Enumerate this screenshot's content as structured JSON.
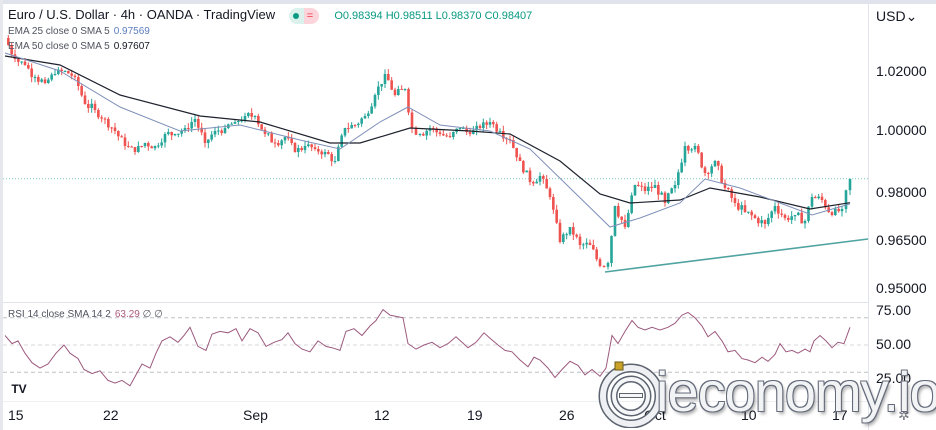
{
  "header": {
    "title": "Euro / U.S. Dollar · 4h · OANDA · TradingView",
    "status_icons": [
      "market-open-dot-icon",
      "equals-icon"
    ],
    "ohlc": "O0.98394 H0.98511 L0.98370 C0.98407"
  },
  "indicators": [
    {
      "label": "EMA 25 close 0 SMA 5",
      "value": "0.97569",
      "color": "#5b7dbf"
    },
    {
      "label": "EMA 50 close 0 SMA 5",
      "value": "0.97607",
      "color": "#131722"
    }
  ],
  "rsi": {
    "label": "RSI 14 close SMA 14 2",
    "value": "63.29",
    "extra": "∅ ∅"
  },
  "price_axis": {
    "currency": "USD",
    "ticks": [
      {
        "label": "1.02000",
        "y": 72
      },
      {
        "label": "1.00000",
        "y": 131
      },
      {
        "label": "0.98000",
        "y": 193
      },
      {
        "label": "0.96500",
        "y": 241
      },
      {
        "label": "0.95000",
        "y": 289
      }
    ]
  },
  "rsi_axis": {
    "ticks": [
      {
        "label": "75.00",
        "y": 311
      },
      {
        "label": "50.00",
        "y": 345
      },
      {
        "label": "25.00",
        "y": 379
      }
    ]
  },
  "time_axis": {
    "ticks": [
      {
        "label": "15",
        "x": 8
      },
      {
        "label": "22",
        "x": 103
      },
      {
        "label": "Sep",
        "x": 243
      },
      {
        "label": "12",
        "x": 374
      },
      {
        "label": "19",
        "x": 467
      },
      {
        "label": "26",
        "x": 559
      },
      {
        "label": "Oct",
        "x": 644
      },
      {
        "label": "10",
        "x": 741
      },
      {
        "label": "17",
        "x": 832
      }
    ]
  },
  "watermark": "ieconomy.io",
  "tv_logo": "TV",
  "colors": {
    "up": "#26a69a",
    "down": "#ef5350",
    "ema25": "#7e8fb8",
    "ema50": "#1e222d",
    "rsi": "#9c5a7e",
    "trendline": "#4fa3a0",
    "last_price": "#26a69a"
  },
  "chart_data": {
    "type": "candlestick",
    "title": "Euro / U.S. Dollar · 4h · OANDA",
    "xlabel": "",
    "ylabel": "USD",
    "ylim": [
      0.946,
      1.033
    ],
    "x_ticks": [
      "15",
      "22",
      "Sep",
      "12",
      "19",
      "26",
      "Oct",
      "10",
      "17"
    ],
    "y_ticks": [
      1.02,
      1.0,
      0.98,
      0.965,
      0.95
    ],
    "last_close": 0.98407,
    "close_path": [
      {
        "x": 5,
        "v": 1.031
      },
      {
        "x": 15,
        "v": 1.024
      },
      {
        "x": 25,
        "v": 1.022
      },
      {
        "x": 35,
        "v": 1.018
      },
      {
        "x": 45,
        "v": 1.016
      },
      {
        "x": 55,
        "v": 1.019
      },
      {
        "x": 65,
        "v": 1.02
      },
      {
        "x": 75,
        "v": 1.018
      },
      {
        "x": 85,
        "v": 1.009
      },
      {
        "x": 95,
        "v": 1.007
      },
      {
        "x": 105,
        "v": 1.004
      },
      {
        "x": 115,
        "v": 1.0
      },
      {
        "x": 125,
        "v": 0.995
      },
      {
        "x": 135,
        "v": 0.993
      },
      {
        "x": 145,
        "v": 0.996
      },
      {
        "x": 155,
        "v": 0.995
      },
      {
        "x": 165,
        "v": 0.999
      },
      {
        "x": 175,
        "v": 0.999
      },
      {
        "x": 185,
        "v": 1.001
      },
      {
        "x": 195,
        "v": 1.004
      },
      {
        "x": 205,
        "v": 0.996
      },
      {
        "x": 215,
        "v": 1.0
      },
      {
        "x": 225,
        "v": 1.001
      },
      {
        "x": 235,
        "v": 1.003
      },
      {
        "x": 245,
        "v": 1.005
      },
      {
        "x": 255,
        "v": 1.005
      },
      {
        "x": 265,
        "v": 0.999
      },
      {
        "x": 275,
        "v": 0.996
      },
      {
        "x": 285,
        "v": 0.998
      },
      {
        "x": 295,
        "v": 0.993
      },
      {
        "x": 305,
        "v": 0.995
      },
      {
        "x": 315,
        "v": 0.994
      },
      {
        "x": 325,
        "v": 0.993
      },
      {
        "x": 335,
        "v": 0.99
      },
      {
        "x": 345,
        "v": 1.001
      },
      {
        "x": 355,
        "v": 1.002
      },
      {
        "x": 365,
        "v": 1.005
      },
      {
        "x": 375,
        "v": 1.012
      },
      {
        "x": 385,
        "v": 1.019
      },
      {
        "x": 395,
        "v": 1.012
      },
      {
        "x": 405,
        "v": 1.014
      },
      {
        "x": 412,
        "v": 1.001
      },
      {
        "x": 420,
        "v": 0.999
      },
      {
        "x": 430,
        "v": 1.001
      },
      {
        "x": 440,
        "v": 0.999
      },
      {
        "x": 450,
        "v": 0.998
      },
      {
        "x": 460,
        "v": 1.001
      },
      {
        "x": 470,
        "v": 0.999
      },
      {
        "x": 480,
        "v": 1.001
      },
      {
        "x": 490,
        "v": 1.003
      },
      {
        "x": 500,
        "v": 1.0
      },
      {
        "x": 510,
        "v": 0.997
      },
      {
        "x": 520,
        "v": 0.99
      },
      {
        "x": 530,
        "v": 0.983
      },
      {
        "x": 540,
        "v": 0.985
      },
      {
        "x": 550,
        "v": 0.978
      },
      {
        "x": 560,
        "v": 0.963
      },
      {
        "x": 570,
        "v": 0.968
      },
      {
        "x": 580,
        "v": 0.962
      },
      {
        "x": 590,
        "v": 0.962
      },
      {
        "x": 600,
        "v": 0.955
      },
      {
        "x": 608,
        "v": 0.956
      },
      {
        "x": 615,
        "v": 0.975
      },
      {
        "x": 625,
        "v": 0.968
      },
      {
        "x": 635,
        "v": 0.982
      },
      {
        "x": 645,
        "v": 0.98
      },
      {
        "x": 655,
        "v": 0.982
      },
      {
        "x": 665,
        "v": 0.976
      },
      {
        "x": 675,
        "v": 0.982
      },
      {
        "x": 685,
        "v": 0.995
      },
      {
        "x": 695,
        "v": 0.995
      },
      {
        "x": 705,
        "v": 0.986
      },
      {
        "x": 715,
        "v": 0.99
      },
      {
        "x": 725,
        "v": 0.981
      },
      {
        "x": 735,
        "v": 0.976
      },
      {
        "x": 745,
        "v": 0.973
      },
      {
        "x": 755,
        "v": 0.971
      },
      {
        "x": 765,
        "v": 0.969
      },
      {
        "x": 775,
        "v": 0.975
      },
      {
        "x": 785,
        "v": 0.971
      },
      {
        "x": 795,
        "v": 0.972
      },
      {
        "x": 805,
        "v": 0.97
      },
      {
        "x": 812,
        "v": 0.978
      },
      {
        "x": 822,
        "v": 0.977
      },
      {
        "x": 832,
        "v": 0.972
      },
      {
        "x": 842,
        "v": 0.974
      },
      {
        "x": 850,
        "v": 0.984
      }
    ],
    "ema25": [
      {
        "x": 5,
        "v": 1.026
      },
      {
        "x": 60,
        "v": 1.02
      },
      {
        "x": 120,
        "v": 1.008
      },
      {
        "x": 180,
        "v": 1.0
      },
      {
        "x": 240,
        "v": 1.002
      },
      {
        "x": 300,
        "v": 0.997
      },
      {
        "x": 340,
        "v": 0.994
      },
      {
        "x": 380,
        "v": 1.003
      },
      {
        "x": 408,
        "v": 1.008
      },
      {
        "x": 440,
        "v": 1.002
      },
      {
        "x": 490,
        "v": 1.0
      },
      {
        "x": 530,
        "v": 0.994
      },
      {
        "x": 570,
        "v": 0.981
      },
      {
        "x": 610,
        "v": 0.968
      },
      {
        "x": 640,
        "v": 0.971
      },
      {
        "x": 680,
        "v": 0.976
      },
      {
        "x": 705,
        "v": 0.984
      },
      {
        "x": 740,
        "v": 0.981
      },
      {
        "x": 780,
        "v": 0.976
      },
      {
        "x": 812,
        "v": 0.972
      },
      {
        "x": 850,
        "v": 0.9757
      }
    ],
    "ema50": [
      {
        "x": 5,
        "v": 1.025
      },
      {
        "x": 60,
        "v": 1.022
      },
      {
        "x": 120,
        "v": 1.012
      },
      {
        "x": 200,
        "v": 1.005
      },
      {
        "x": 260,
        "v": 1.003
      },
      {
        "x": 330,
        "v": 0.996
      },
      {
        "x": 360,
        "v": 0.996
      },
      {
        "x": 410,
        "v": 1.001
      },
      {
        "x": 470,
        "v": 1.0
      },
      {
        "x": 510,
        "v": 0.999
      },
      {
        "x": 560,
        "v": 0.99
      },
      {
        "x": 600,
        "v": 0.979
      },
      {
        "x": 630,
        "v": 0.976
      },
      {
        "x": 680,
        "v": 0.977
      },
      {
        "x": 710,
        "v": 0.981
      },
      {
        "x": 760,
        "v": 0.978
      },
      {
        "x": 810,
        "v": 0.974
      },
      {
        "x": 850,
        "v": 0.9761
      }
    ],
    "trendline": [
      {
        "x": 605,
        "v": 0.953
      },
      {
        "x": 868,
        "v": 0.964
      }
    ],
    "rsi_series": {
      "ylim": [
        0,
        100
      ],
      "levels": [
        70,
        50,
        30
      ],
      "points": [
        {
          "x": 5,
          "v": 57
        },
        {
          "x": 12,
          "v": 51
        },
        {
          "x": 18,
          "v": 53
        },
        {
          "x": 25,
          "v": 44
        },
        {
          "x": 32,
          "v": 37
        },
        {
          "x": 40,
          "v": 33
        },
        {
          "x": 48,
          "v": 36
        },
        {
          "x": 56,
          "v": 44
        },
        {
          "x": 64,
          "v": 50
        },
        {
          "x": 70,
          "v": 44
        },
        {
          "x": 78,
          "v": 40
        },
        {
          "x": 84,
          "v": 32
        },
        {
          "x": 92,
          "v": 29
        },
        {
          "x": 100,
          "v": 31
        },
        {
          "x": 108,
          "v": 24
        },
        {
          "x": 115,
          "v": 22
        },
        {
          "x": 122,
          "v": 24
        },
        {
          "x": 130,
          "v": 20
        },
        {
          "x": 136,
          "v": 28
        },
        {
          "x": 142,
          "v": 36
        },
        {
          "x": 150,
          "v": 33
        },
        {
          "x": 156,
          "v": 44
        },
        {
          "x": 162,
          "v": 53
        },
        {
          "x": 170,
          "v": 56
        },
        {
          "x": 178,
          "v": 52
        },
        {
          "x": 184,
          "v": 57
        },
        {
          "x": 190,
          "v": 63
        },
        {
          "x": 198,
          "v": 49
        },
        {
          "x": 206,
          "v": 46
        },
        {
          "x": 212,
          "v": 58
        },
        {
          "x": 220,
          "v": 60
        },
        {
          "x": 228,
          "v": 59
        },
        {
          "x": 236,
          "v": 62
        },
        {
          "x": 242,
          "v": 53
        },
        {
          "x": 250,
          "v": 62
        },
        {
          "x": 258,
          "v": 59
        },
        {
          "x": 266,
          "v": 49
        },
        {
          "x": 274,
          "v": 52
        },
        {
          "x": 282,
          "v": 54
        },
        {
          "x": 288,
          "v": 59
        },
        {
          "x": 295,
          "v": 51
        },
        {
          "x": 302,
          "v": 47
        },
        {
          "x": 310,
          "v": 45
        },
        {
          "x": 318,
          "v": 53
        },
        {
          "x": 326,
          "v": 49
        },
        {
          "x": 332,
          "v": 48
        },
        {
          "x": 340,
          "v": 46
        },
        {
          "x": 346,
          "v": 60
        },
        {
          "x": 354,
          "v": 62
        },
        {
          "x": 362,
          "v": 57
        },
        {
          "x": 370,
          "v": 64
        },
        {
          "x": 376,
          "v": 68
        },
        {
          "x": 383,
          "v": 76
        },
        {
          "x": 390,
          "v": 72
        },
        {
          "x": 396,
          "v": 71
        },
        {
          "x": 403,
          "v": 70
        },
        {
          "x": 408,
          "v": 51
        },
        {
          "x": 416,
          "v": 47
        },
        {
          "x": 424,
          "v": 50
        },
        {
          "x": 432,
          "v": 52
        },
        {
          "x": 440,
          "v": 48
        },
        {
          "x": 448,
          "v": 51
        },
        {
          "x": 456,
          "v": 56
        },
        {
          "x": 462,
          "v": 52
        },
        {
          "x": 468,
          "v": 48
        },
        {
          "x": 476,
          "v": 52
        },
        {
          "x": 484,
          "v": 59
        },
        {
          "x": 490,
          "v": 55
        },
        {
          "x": 498,
          "v": 50
        },
        {
          "x": 505,
          "v": 46
        },
        {
          "x": 512,
          "v": 45
        },
        {
          "x": 520,
          "v": 39
        },
        {
          "x": 528,
          "v": 34
        },
        {
          "x": 534,
          "v": 41
        },
        {
          "x": 540,
          "v": 39
        },
        {
          "x": 548,
          "v": 33
        },
        {
          "x": 555,
          "v": 26
        },
        {
          "x": 562,
          "v": 32
        },
        {
          "x": 570,
          "v": 38
        },
        {
          "x": 578,
          "v": 35
        },
        {
          "x": 585,
          "v": 28
        },
        {
          "x": 592,
          "v": 32
        },
        {
          "x": 600,
          "v": 27
        },
        {
          "x": 606,
          "v": 33
        },
        {
          "x": 612,
          "v": 57
        },
        {
          "x": 618,
          "v": 51
        },
        {
          "x": 625,
          "v": 60
        },
        {
          "x": 632,
          "v": 68
        },
        {
          "x": 638,
          "v": 63
        },
        {
          "x": 645,
          "v": 61
        },
        {
          "x": 652,
          "v": 63
        },
        {
          "x": 660,
          "v": 61
        },
        {
          "x": 668,
          "v": 63
        },
        {
          "x": 675,
          "v": 66
        },
        {
          "x": 682,
          "v": 72
        },
        {
          "x": 688,
          "v": 74
        },
        {
          "x": 695,
          "v": 70
        },
        {
          "x": 702,
          "v": 64
        },
        {
          "x": 708,
          "v": 56
        },
        {
          "x": 715,
          "v": 60
        },
        {
          "x": 722,
          "v": 53
        },
        {
          "x": 728,
          "v": 45
        },
        {
          "x": 735,
          "v": 46
        },
        {
          "x": 742,
          "v": 40
        },
        {
          "x": 748,
          "v": 39
        },
        {
          "x": 755,
          "v": 37
        },
        {
          "x": 762,
          "v": 41
        },
        {
          "x": 768,
          "v": 38
        },
        {
          "x": 775,
          "v": 43
        },
        {
          "x": 780,
          "v": 51
        },
        {
          "x": 786,
          "v": 45
        },
        {
          "x": 792,
          "v": 46
        },
        {
          "x": 798,
          "v": 44
        },
        {
          "x": 805,
          "v": 47
        },
        {
          "x": 810,
          "v": 45
        },
        {
          "x": 814,
          "v": 53
        },
        {
          "x": 820,
          "v": 57
        },
        {
          "x": 826,
          "v": 53
        },
        {
          "x": 832,
          "v": 48
        },
        {
          "x": 838,
          "v": 52
        },
        {
          "x": 844,
          "v": 51
        },
        {
          "x": 850,
          "v": 63
        }
      ]
    }
  }
}
